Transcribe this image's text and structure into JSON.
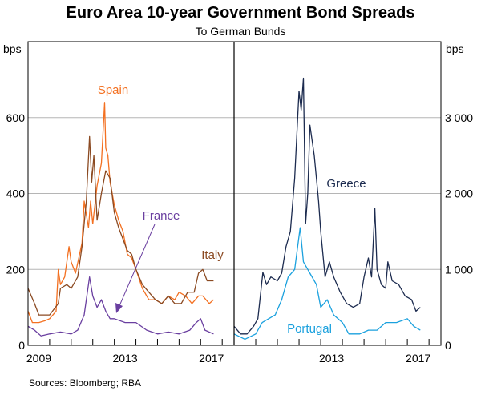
{
  "chart_data": [
    {
      "type": "line",
      "title": "Euro Area 10-year Government Bond Spreads",
      "subtitle": "To German Bunds",
      "ylabel": "bps",
      "ylim": [
        0,
        800
      ],
      "yticks": [
        0,
        200,
        400,
        600
      ],
      "xlim": [
        2009,
        2018.55
      ],
      "xtick_labels": [
        "2009",
        "2013",
        "2017"
      ],
      "grid": true,
      "series": [
        {
          "name": "Spain",
          "color": "#F37021",
          "points": [
            [
              2009.0,
              90
            ],
            [
              2009.2,
              60
            ],
            [
              2009.5,
              60
            ],
            [
              2009.8,
              65
            ],
            [
              2010.0,
              70
            ],
            [
              2010.3,
              90
            ],
            [
              2010.4,
              200
            ],
            [
              2010.5,
              160
            ],
            [
              2010.7,
              180
            ],
            [
              2010.9,
              260
            ],
            [
              2011.0,
              220
            ],
            [
              2011.2,
              190
            ],
            [
              2011.5,
              270
            ],
            [
              2011.6,
              380
            ],
            [
              2011.8,
              310
            ],
            [
              2011.9,
              380
            ],
            [
              2012.0,
              320
            ],
            [
              2012.2,
              420
            ],
            [
              2012.4,
              480
            ],
            [
              2012.55,
              640
            ],
            [
              2012.6,
              520
            ],
            [
              2012.7,
              500
            ],
            [
              2012.8,
              430
            ],
            [
              2013.0,
              370
            ],
            [
              2013.2,
              330
            ],
            [
              2013.4,
              300
            ],
            [
              2013.6,
              240
            ],
            [
              2013.8,
              230
            ],
            [
              2014.0,
              200
            ],
            [
              2014.3,
              150
            ],
            [
              2014.6,
              120
            ],
            [
              2014.9,
              120
            ],
            [
              2015.2,
              110
            ],
            [
              2015.5,
              130
            ],
            [
              2015.8,
              120
            ],
            [
              2016.0,
              140
            ],
            [
              2016.3,
              130
            ],
            [
              2016.6,
              110
            ],
            [
              2016.9,
              130
            ],
            [
              2017.1,
              130
            ],
            [
              2017.4,
              110
            ],
            [
              2017.6,
              120
            ]
          ]
        },
        {
          "name": "Italy",
          "color": "#8B4A22",
          "points": [
            [
              2009.0,
              150
            ],
            [
              2009.3,
              110
            ],
            [
              2009.5,
              80
            ],
            [
              2010.0,
              80
            ],
            [
              2010.4,
              110
            ],
            [
              2010.5,
              150
            ],
            [
              2010.8,
              160
            ],
            [
              2011.0,
              150
            ],
            [
              2011.3,
              180
            ],
            [
              2011.5,
              260
            ],
            [
              2011.7,
              380
            ],
            [
              2011.85,
              550
            ],
            [
              2011.95,
              430
            ],
            [
              2012.05,
              500
            ],
            [
              2012.2,
              330
            ],
            [
              2012.4,
              400
            ],
            [
              2012.6,
              460
            ],
            [
              2012.8,
              440
            ],
            [
              2013.0,
              350
            ],
            [
              2013.2,
              310
            ],
            [
              2013.4,
              280
            ],
            [
              2013.6,
              250
            ],
            [
              2013.8,
              240
            ],
            [
              2014.0,
              200
            ],
            [
              2014.3,
              160
            ],
            [
              2014.6,
              140
            ],
            [
              2014.9,
              120
            ],
            [
              2015.2,
              110
            ],
            [
              2015.5,
              130
            ],
            [
              2015.8,
              110
            ],
            [
              2016.1,
              110
            ],
            [
              2016.4,
              140
            ],
            [
              2016.7,
              140
            ],
            [
              2016.9,
              190
            ],
            [
              2017.1,
              200
            ],
            [
              2017.3,
              170
            ],
            [
              2017.6,
              170
            ]
          ]
        },
        {
          "name": "France",
          "color": "#6A3FA0",
          "points": [
            [
              2009.0,
              50
            ],
            [
              2009.3,
              40
            ],
            [
              2009.6,
              25
            ],
            [
              2010.0,
              30
            ],
            [
              2010.5,
              35
            ],
            [
              2011.0,
              30
            ],
            [
              2011.3,
              40
            ],
            [
              2011.6,
              80
            ],
            [
              2011.85,
              180
            ],
            [
              2012.0,
              130
            ],
            [
              2012.2,
              100
            ],
            [
              2012.4,
              120
            ],
            [
              2012.6,
              90
            ],
            [
              2012.8,
              70
            ],
            [
              2013.0,
              70
            ],
            [
              2013.5,
              60
            ],
            [
              2014.0,
              60
            ],
            [
              2014.5,
              40
            ],
            [
              2015.0,
              30
            ],
            [
              2015.5,
              35
            ],
            [
              2016.0,
              30
            ],
            [
              2016.5,
              40
            ],
            [
              2016.8,
              60
            ],
            [
              2017.0,
              70
            ],
            [
              2017.2,
              40
            ],
            [
              2017.6,
              30
            ]
          ]
        }
      ]
    },
    {
      "type": "line",
      "ylabel": "bps",
      "ylim": [
        0,
        4000
      ],
      "yticks": [
        "0",
        "1 000",
        "2 000",
        "3 000"
      ],
      "xlim": [
        2009,
        2018.55
      ],
      "xtick_labels": [
        "2013",
        "2017"
      ],
      "grid": true,
      "series": [
        {
          "name": "Greece",
          "color": "#1C2B4F",
          "points": [
            [
              2009.0,
              250
            ],
            [
              2009.3,
              150
            ],
            [
              2009.6,
              150
            ],
            [
              2009.9,
              250
            ],
            [
              2010.1,
              350
            ],
            [
              2010.33,
              960
            ],
            [
              2010.5,
              800
            ],
            [
              2010.7,
              900
            ],
            [
              2011.0,
              850
            ],
            [
              2011.2,
              950
            ],
            [
              2011.4,
              1300
            ],
            [
              2011.6,
              1500
            ],
            [
              2011.8,
              2200
            ],
            [
              2012.0,
              3350
            ],
            [
              2012.1,
              3100
            ],
            [
              2012.2,
              3520
            ],
            [
              2012.3,
              1600
            ],
            [
              2012.4,
              2000
            ],
            [
              2012.5,
              2900
            ],
            [
              2012.7,
              2500
            ],
            [
              2012.9,
              1900
            ],
            [
              2013.0,
              1500
            ],
            [
              2013.2,
              900
            ],
            [
              2013.4,
              1100
            ],
            [
              2013.6,
              900
            ],
            [
              2013.9,
              700
            ],
            [
              2014.2,
              550
            ],
            [
              2014.5,
              500
            ],
            [
              2014.8,
              550
            ],
            [
              2015.0,
              900
            ],
            [
              2015.2,
              1150
            ],
            [
              2015.35,
              900
            ],
            [
              2015.5,
              1800
            ],
            [
              2015.6,
              1000
            ],
            [
              2015.8,
              800
            ],
            [
              2016.0,
              750
            ],
            [
              2016.1,
              1100
            ],
            [
              2016.3,
              850
            ],
            [
              2016.6,
              800
            ],
            [
              2016.9,
              650
            ],
            [
              2017.2,
              600
            ],
            [
              2017.4,
              450
            ],
            [
              2017.6,
              500
            ]
          ]
        },
        {
          "name": "Portugal",
          "color": "#1BA1DE",
          "points": [
            [
              2009.0,
              150
            ],
            [
              2009.5,
              80
            ],
            [
              2010.0,
              150
            ],
            [
              2010.3,
              300
            ],
            [
              2010.6,
              350
            ],
            [
              2010.9,
              400
            ],
            [
              2011.2,
              600
            ],
            [
              2011.5,
              900
            ],
            [
              2011.8,
              1000
            ],
            [
              2012.05,
              1550
            ],
            [
              2012.2,
              1100
            ],
            [
              2012.5,
              950
            ],
            [
              2012.8,
              800
            ],
            [
              2013.0,
              500
            ],
            [
              2013.3,
              600
            ],
            [
              2013.6,
              400
            ],
            [
              2014.0,
              300
            ],
            [
              2014.3,
              150
            ],
            [
              2014.8,
              150
            ],
            [
              2015.2,
              200
            ],
            [
              2015.6,
              200
            ],
            [
              2016.0,
              300
            ],
            [
              2016.5,
              300
            ],
            [
              2017.0,
              350
            ],
            [
              2017.3,
              250
            ],
            [
              2017.6,
              200
            ]
          ]
        }
      ]
    }
  ],
  "footer": {
    "sources": "Sources: Bloomberg; RBA"
  }
}
